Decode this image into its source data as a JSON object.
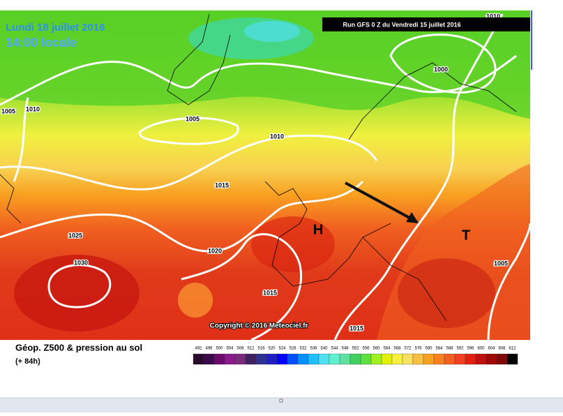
{
  "header": {
    "valid_date": "Lundi 18 juillet 2016",
    "valid_time": "14:00 locale",
    "run": "Run GFS 0 Z du Vendredi 15 juillet 2016"
  },
  "map": {
    "high_marker": "H",
    "low_marker": "T",
    "copyright": "Copyright © 2016 Meteociel.fr",
    "isobar_labels": [
      "1010",
      "1000",
      "1005",
      "1010",
      "1005",
      "1010",
      "1015",
      "1025",
      "1030",
      "1020",
      "1015",
      "1015",
      "1005"
    ]
  },
  "legend": {
    "title": "Géop. Z500 & pression au sol",
    "range": "(+ 84h)",
    "scale": [
      492,
      496,
      500,
      504,
      508,
      512,
      516,
      520,
      524,
      528,
      532,
      536,
      540,
      544,
      548,
      552,
      556,
      560,
      564,
      568,
      572,
      576,
      580,
      584,
      588,
      592,
      596,
      600,
      604,
      608,
      612
    ],
    "colors": [
      "#2a0a2a",
      "#3a0a4a",
      "#6a0a6a",
      "#8a1a8a",
      "#7a2a7a",
      "#402060",
      "#303090",
      "#2020c0",
      "#0000ff",
      "#0050ff",
      "#0090ff",
      "#20c0ff",
      "#50e0f0",
      "#60f0d0",
      "#60e0a0",
      "#40d060",
      "#60e040",
      "#a0f020",
      "#e0f000",
      "#f8f040",
      "#f8e060",
      "#f8c040",
      "#f8a020",
      "#f88020",
      "#f06020",
      "#f04020",
      "#e02010",
      "#c01010",
      "#a00808",
      "#800808",
      "#000000"
    ]
  }
}
